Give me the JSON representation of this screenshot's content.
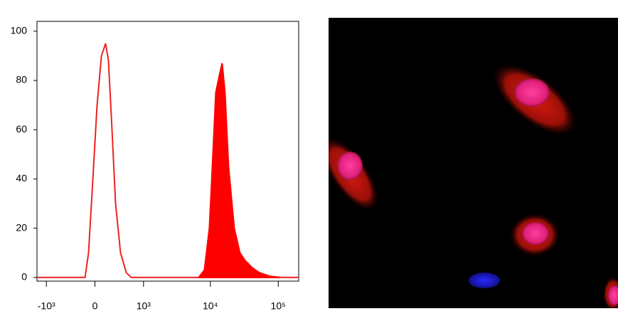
{
  "chart_data": {
    "type": "histogram",
    "xscale": "biexponential",
    "xlim": [
      -1400,
      200000
    ],
    "xticks": [
      {
        "value": -1000,
        "label": "-10³"
      },
      0,
      {
        "value": 1000,
        "label": "10³"
      },
      {
        "value": 10000,
        "label": "10⁴"
      },
      {
        "value": 100000,
        "label": "10⁵"
      }
    ],
    "ylim": [
      -1.5,
      104
    ],
    "yticks": [
      0,
      20,
      40,
      60,
      80,
      100
    ],
    "series": [
      {
        "color": "#ee2222",
        "filled": false,
        "x": [
          -1400,
          -137,
          -88,
          -38,
          29,
          88,
          148,
          190,
          244,
          303,
          392,
          508,
          624,
          200000
        ],
        "values": [
          0,
          0,
          10,
          35,
          70,
          90,
          95,
          88,
          60,
          30,
          10,
          2,
          0,
          0
        ]
      },
      {
        "color": "#ff0000",
        "filled": true,
        "x": [
          6740,
          8170,
          9680,
          10920,
          12030,
          13560,
          14930,
          16450,
          18550,
          22500,
          27260,
          32270,
          41080,
          52300,
          75150,
          107400
        ],
        "values": [
          0,
          3,
          20,
          50,
          75,
          82,
          87,
          75,
          45,
          20,
          10,
          7,
          4,
          2,
          0.5,
          0
        ]
      }
    ]
  }
}
